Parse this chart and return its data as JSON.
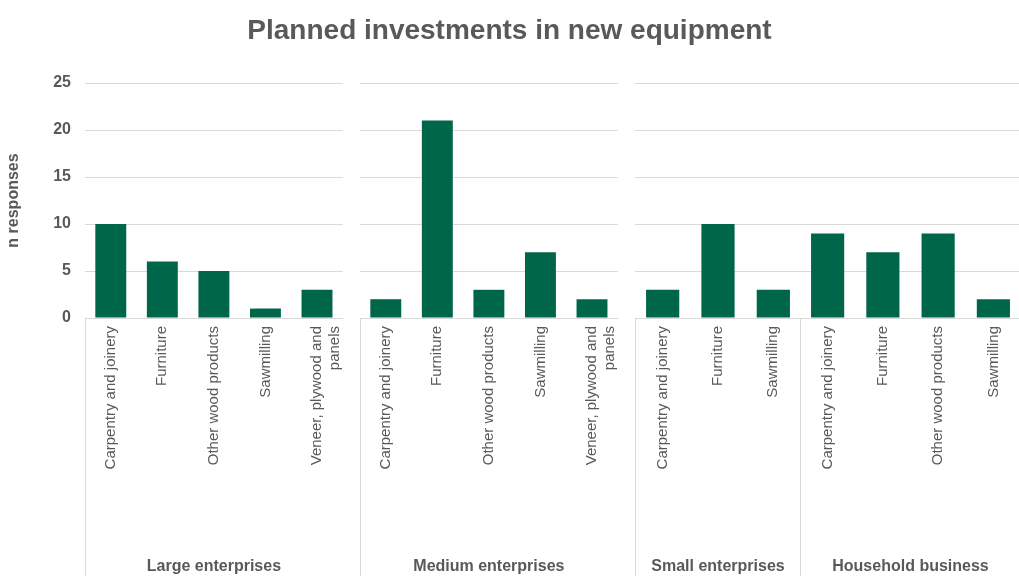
{
  "chart_data": [
    {
      "type": "bar",
      "title": "Planned investments in new equipment",
      "ylabel": "n responses",
      "xlabel": "Large enterprises",
      "categories": [
        "Carpentry and joinery",
        "Furniture",
        "Other wood products",
        "Sawmilling",
        "Veneer, plywood and panels"
      ],
      "values": [
        10,
        6,
        5,
        1,
        3
      ],
      "color": "#00664a",
      "ylim": [
        0,
        25
      ],
      "yticks": [
        0,
        5,
        10,
        15,
        20,
        25
      ],
      "grid": "y",
      "legend": false
    },
    {
      "type": "bar",
      "xlabel": "Medium enterprises",
      "categories": [
        "Carpentry and joinery",
        "Furniture",
        "Other wood products",
        "Sawmilling",
        "Veneer, plywood and panels"
      ],
      "values": [
        2,
        21,
        3,
        7,
        2
      ],
      "color": "#00664a",
      "ylim": [
        0,
        25
      ],
      "yticks": [
        0,
        5,
        10,
        15,
        20,
        25
      ],
      "grid": "y",
      "legend": false,
      "tick_labels": "x"
    },
    {
      "type": "bar",
      "xlabel": "Small enterprises",
      "categories": [
        "Carpentry and joinery",
        "Furniture",
        "Sawmilling"
      ],
      "values": [
        3,
        10,
        3
      ],
      "color": "#00664a",
      "ylim": [
        0,
        25
      ],
      "yticks": [
        0,
        5,
        10,
        15,
        20,
        25
      ],
      "grid": "y",
      "legend": false,
      "tick_labels": "x"
    },
    {
      "type": "bar",
      "xlabel": "Household business",
      "categories": [
        "Carpentry and joinery",
        "Furniture",
        "Other wood products",
        "Sawmilling"
      ],
      "values": [
        9,
        7,
        9,
        2
      ],
      "color": "#00664a",
      "ylim": [
        0,
        25
      ],
      "yticks": [
        0,
        5,
        10,
        15,
        20,
        25
      ],
      "grid": "y",
      "legend": false,
      "tick_labels": "x"
    }
  ]
}
